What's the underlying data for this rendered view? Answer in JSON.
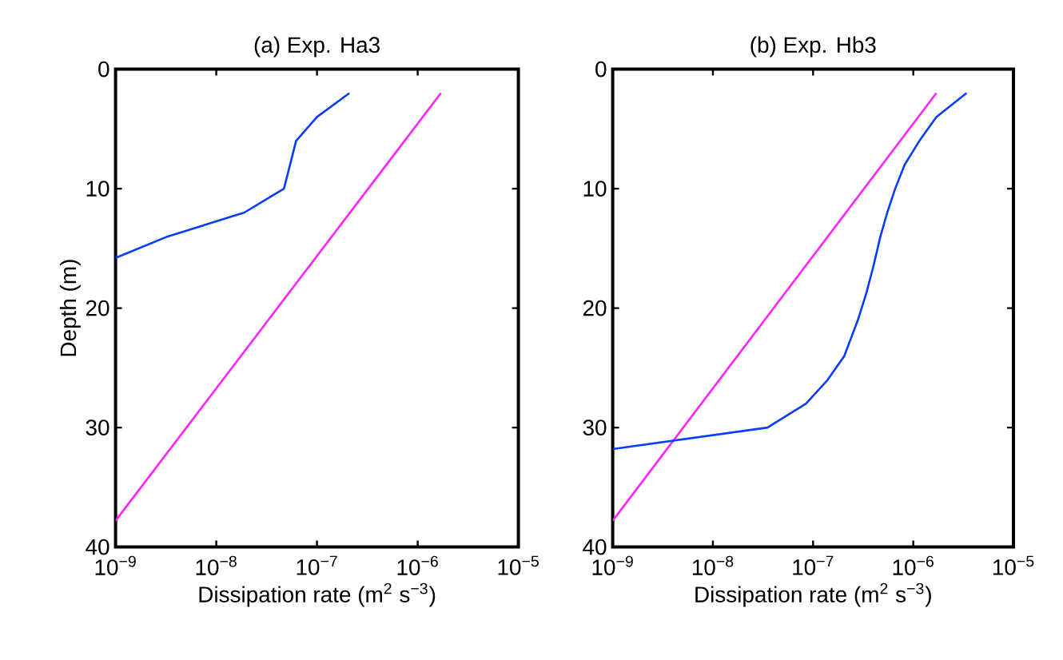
{
  "chart_data": [
    {
      "type": "line",
      "title": "(a) Exp. Ha3",
      "xlabel": "Dissipation rate (m$^{2}$ s$^{−3}$)",
      "ylabel": "Depth (m)",
      "log": "x",
      "xlim": [
        1e-09,
        1e-05
      ],
      "ylim": [
        40,
        0
      ],
      "xticks": [
        {
          "value": 1e-09,
          "label": "10$^{−9}$"
        },
        {
          "value": 1e-08,
          "label": "10$^{−8}$"
        },
        {
          "value": 1e-07,
          "label": "10$^{−7}$"
        },
        {
          "value": 1e-06,
          "label": "10$^{−6}$"
        },
        {
          "value": 1e-05,
          "label": "10$^{−5}$"
        }
      ],
      "yticks": [
        0,
        10,
        20,
        30,
        40
      ],
      "series": [
        {
          "color": "#0a3cff",
          "x": [
            2.1e-07,
            1e-07,
            6.2e-08,
            4.7e-08,
            1.9e-08,
            3.3e-09,
            1e-09
          ],
          "values": [
            2,
            4,
            6,
            10,
            12,
            14,
            15.8
          ]
        },
        {
          "color": "#ff22ff",
          "x": [
            1.7e-06,
            1e-09
          ],
          "values": [
            2,
            37.8
          ]
        }
      ]
    },
    {
      "type": "line",
      "title": "(b) Exp. Hb3",
      "xlabel": "Dissipation rate (m$^{2}$ s$^{−3}$)",
      "log": "x",
      "xlim": [
        1e-09,
        1e-05
      ],
      "ylim": [
        40,
        0
      ],
      "xticks": [
        {
          "value": 1e-09,
          "label": "10$^{−9}$"
        },
        {
          "value": 1e-08,
          "label": "10$^{−8}$"
        },
        {
          "value": 1e-07,
          "label": "10$^{−7}$"
        },
        {
          "value": 1e-06,
          "label": "10$^{−6}$"
        },
        {
          "value": 1e-05,
          "label": "10$^{−5}$"
        }
      ],
      "yticks": [
        0,
        10,
        20,
        30,
        40
      ],
      "series": [
        {
          "color": "#ff22ff",
          "x": [
            1.7e-06,
            1e-09
          ],
          "values": [
            2,
            37.8
          ]
        },
        {
          "color": "#0a3cff",
          "x": [
            3.4e-06,
            1.7e-06,
            1.15e-06,
            8.2e-07,
            6.6e-07,
            5.5e-07,
            4.7e-07,
            4e-07,
            3.4e-07,
            2.8e-07,
            2.05e-07,
            1.4e-07,
            8.5e-08,
            3.5e-08,
            1e-09
          ],
          "values": [
            2,
            4,
            6,
            8,
            10,
            12,
            14,
            16.5,
            18.75,
            21,
            24,
            26,
            28,
            30,
            31.8
          ]
        }
      ]
    }
  ]
}
